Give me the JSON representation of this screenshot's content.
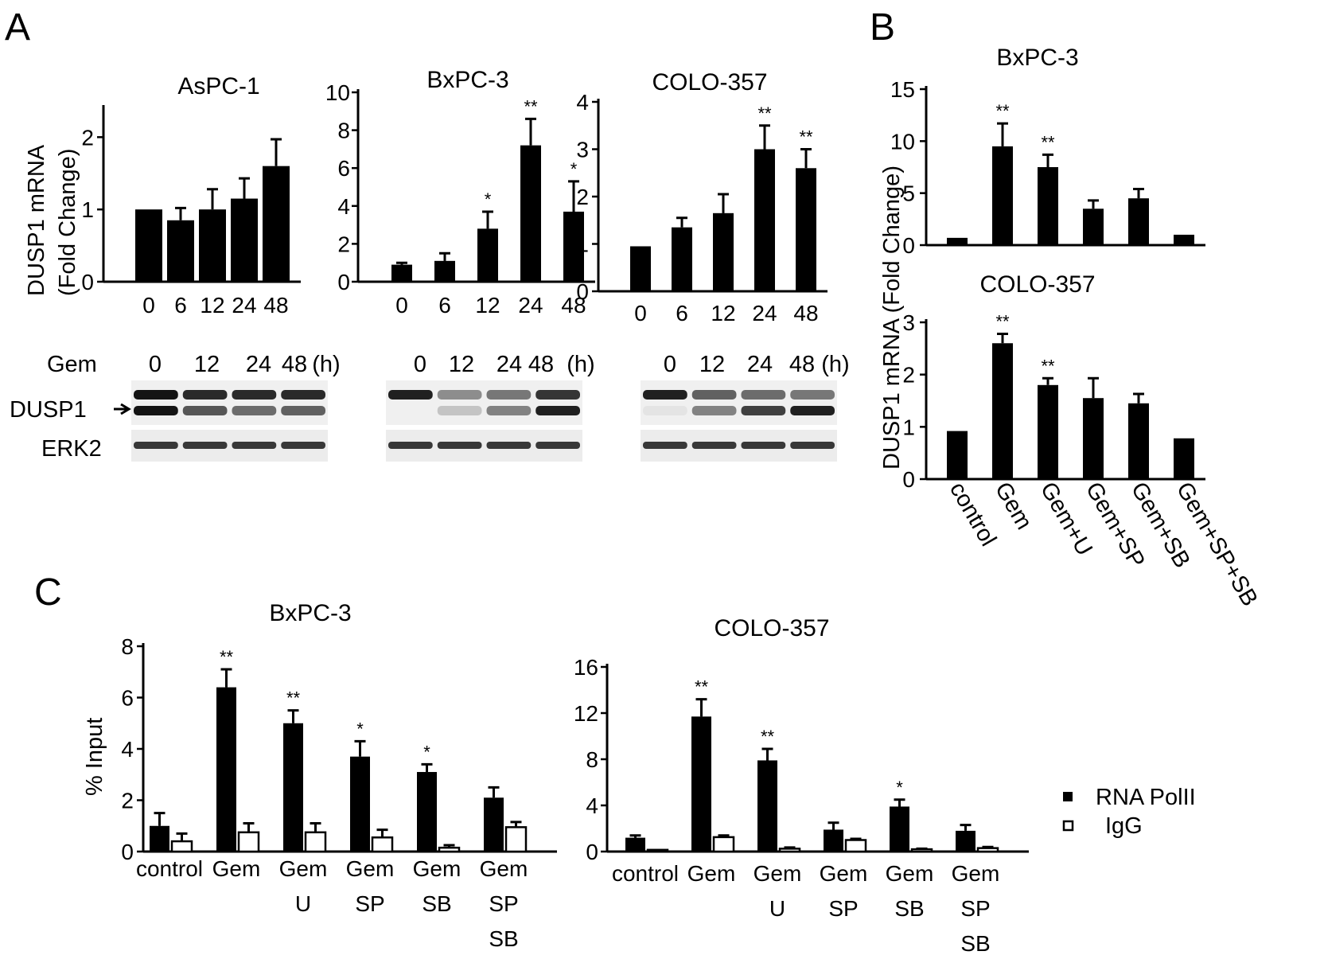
{
  "panel_labels": [
    "A",
    "B",
    "C"
  ],
  "ylabels": {
    "a": [
      "DUSP1 mRNA",
      "(Fold Change)"
    ],
    "b": "DUSP1 mRNA (Fold Change)",
    "c": "% Input"
  },
  "blot_labels": {
    "gem": "Gem",
    "dusp1": "DUSP1",
    "erk2": "ERK2",
    "lanes": [
      "0",
      "12",
      "24",
      "48",
      "(h)"
    ]
  },
  "legend": {
    "polii": "RNA PolII",
    "igg": "IgG"
  },
  "chart_data": [
    {
      "id": "a1",
      "type": "bar",
      "title": "AsPC-1",
      "categories": [
        "0",
        "6",
        "12",
        "24",
        "48"
      ],
      "values": [
        1.0,
        0.85,
        1.0,
        1.15,
        1.6
      ],
      "errors": [
        0,
        0.17,
        0.28,
        0.28,
        0.37
      ],
      "stars": [
        "",
        "",
        "",
        "",
        ""
      ],
      "ylim": [
        0,
        2.4
      ],
      "yticks": [
        "0",
        "1",
        "2"
      ],
      "ytick_values": [
        0,
        1,
        2
      ]
    },
    {
      "id": "a2",
      "type": "bar",
      "title": "BxPC-3",
      "categories": [
        "0",
        "6",
        "12",
        "24",
        "48"
      ],
      "values": [
        0.9,
        1.1,
        2.8,
        7.2,
        3.7
      ],
      "errors": [
        0.1,
        0.4,
        0.9,
        1.4,
        1.6
      ],
      "stars": [
        "",
        "",
        "*",
        "**",
        "*"
      ],
      "ylim": [
        0,
        10
      ],
      "yticks": [
        "0",
        "2",
        "4",
        "6",
        "8",
        "10"
      ],
      "ytick_values": [
        0,
        2,
        4,
        6,
        8,
        10
      ]
    },
    {
      "id": "a3",
      "type": "bar",
      "title": "COLO-357",
      "categories": [
        "0",
        "6",
        "12",
        "24",
        "48"
      ],
      "values": [
        0.95,
        1.35,
        1.65,
        3.0,
        2.6
      ],
      "errors": [
        0,
        0.2,
        0.4,
        0.5,
        0.4
      ],
      "stars": [
        "",
        "",
        "",
        "**",
        "**"
      ],
      "ylim": [
        0,
        4
      ],
      "yticks": [
        "0",
        "1",
        "2",
        "3",
        "4"
      ],
      "ytick_values": [
        0,
        1,
        2,
        3,
        4
      ]
    },
    {
      "id": "b1",
      "type": "bar",
      "title": "BxPC-3",
      "categories": [
        "control",
        "Gem",
        "Gem+U",
        "Gem+SP",
        "Gem+SB",
        "Gem+SP+SB"
      ],
      "values": [
        0.7,
        9.5,
        7.5,
        3.5,
        4.5,
        1.0
      ],
      "errors": [
        0,
        2.2,
        1.2,
        0.8,
        0.9,
        0
      ],
      "stars": [
        "",
        "**",
        "**",
        "",
        "",
        ""
      ],
      "ylim": [
        0,
        15
      ],
      "yticks": [
        "0",
        "5",
        "10",
        "15"
      ],
      "ytick_values": [
        0,
        5,
        10,
        15
      ]
    },
    {
      "id": "b2",
      "type": "bar",
      "title": "COLO-357",
      "categories": [
        "control",
        "Gem",
        "Gem+U",
        "Gem+SP",
        "Gem+SB",
        "Gem+SP+SB"
      ],
      "values": [
        0.92,
        2.6,
        1.8,
        1.55,
        1.45,
        0.78
      ],
      "errors": [
        0,
        0.18,
        0.13,
        0.38,
        0.18,
        0
      ],
      "stars": [
        "",
        "**",
        "**",
        "",
        "",
        ""
      ],
      "ylim": [
        0,
        3
      ],
      "yticks": [
        "0",
        "1",
        "2",
        "3"
      ],
      "ytick_values": [
        0,
        1,
        2,
        3
      ]
    },
    {
      "id": "c1",
      "type": "bar",
      "title": "BxPC-3",
      "categories": [
        "control",
        "Gem",
        "Gem\nU",
        "Gem\nSP",
        "Gem\nSB",
        "Gem\nSP\nSB"
      ],
      "series": [
        {
          "name": "RNA PolII",
          "values": [
            1.0,
            6.4,
            5.0,
            3.7,
            3.1,
            2.1
          ],
          "errors": [
            0.5,
            0.7,
            0.5,
            0.6,
            0.3,
            0.4
          ]
        },
        {
          "name": "IgG",
          "values": [
            0.4,
            0.75,
            0.75,
            0.55,
            0.15,
            0.95
          ],
          "errors": [
            0.3,
            0.35,
            0.35,
            0.3,
            0.1,
            0.2
          ]
        }
      ],
      "stars": [
        "",
        "**",
        "**",
        "*",
        "*",
        ""
      ],
      "ylim": [
        0,
        8
      ],
      "yticks": [
        "0",
        "2",
        "4",
        "6",
        "8"
      ],
      "ytick_values": [
        0,
        2,
        4,
        6,
        8
      ]
    },
    {
      "id": "c2",
      "type": "bar",
      "title": "COLO-357",
      "categories": [
        "control",
        "Gem",
        "Gem\nU",
        "Gem\nSP",
        "Gem\nSB",
        "Gem\nSP\nSB"
      ],
      "series": [
        {
          "name": "RNA PolII",
          "values": [
            1.2,
            11.7,
            7.9,
            1.9,
            3.9,
            1.8
          ],
          "errors": [
            0.2,
            1.5,
            1.0,
            0.6,
            0.6,
            0.5
          ]
        },
        {
          "name": "IgG",
          "values": [
            0.15,
            1.25,
            0.25,
            1.0,
            0.2,
            0.3
          ],
          "errors": [
            0,
            0.15,
            0.1,
            0.1,
            0.05,
            0.1
          ]
        }
      ],
      "stars": [
        "",
        "**",
        "**",
        "",
        "*",
        ""
      ],
      "ylim": [
        0,
        16
      ],
      "yticks": [
        "0",
        "4",
        "8",
        "12",
        "16"
      ],
      "ytick_values": [
        0,
        4,
        8,
        12,
        16
      ]
    }
  ]
}
